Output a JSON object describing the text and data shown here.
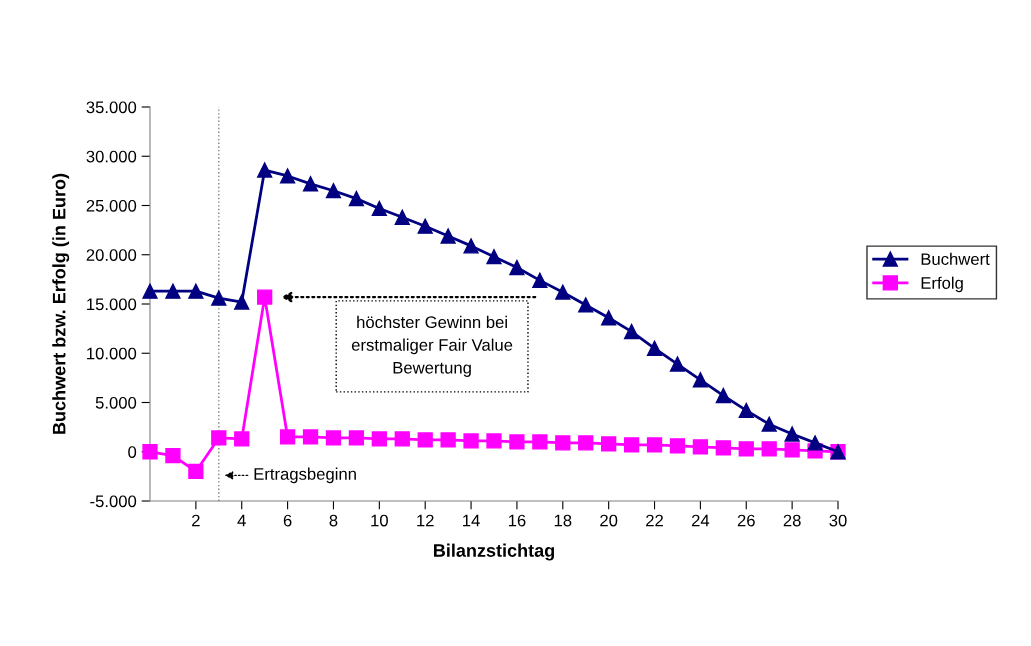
{
  "chart_data": {
    "type": "line",
    "xlabel": "Bilanzstichtag",
    "ylabel": "Buchwert bzw. Erfolg (in Euro)",
    "x": [
      0,
      1,
      2,
      3,
      4,
      5,
      6,
      7,
      8,
      9,
      10,
      11,
      12,
      13,
      14,
      15,
      16,
      17,
      18,
      19,
      20,
      21,
      22,
      23,
      24,
      25,
      26,
      27,
      28,
      29,
      30
    ],
    "series": [
      {
        "name": "Buchwert",
        "color": "#000080",
        "marker": "triangle",
        "values": [
          16300,
          16300,
          16300,
          15600,
          15200,
          28600,
          28000,
          27200,
          26500,
          25700,
          24700,
          23800,
          22900,
          21900,
          20900,
          19800,
          18700,
          17400,
          16200,
          14900,
          13600,
          12200,
          10500,
          8900,
          7300,
          5700,
          4200,
          2800,
          1800,
          900,
          0
        ]
      },
      {
        "name": "Erfolg",
        "color": "#ff00ff",
        "marker": "square",
        "values": [
          0,
          -400,
          -2000,
          1400,
          1300,
          15700,
          1500,
          1500,
          1400,
          1400,
          1300,
          1300,
          1200,
          1200,
          1100,
          1100,
          1000,
          1000,
          900,
          900,
          800,
          700,
          700,
          600,
          500,
          400,
          300,
          300,
          200,
          100,
          0
        ]
      }
    ],
    "xlim": [
      0,
      30
    ],
    "xticks": [
      2,
      4,
      6,
      8,
      10,
      12,
      14,
      16,
      18,
      20,
      22,
      24,
      26,
      28,
      30
    ],
    "ylim": [
      -5000,
      35000
    ],
    "yticks": [
      {
        "value": -5000,
        "label": "-5.000"
      },
      0,
      {
        "value": 5000,
        "label": "5.000"
      },
      {
        "value": 10000,
        "label": "10.000"
      },
      {
        "value": 15000,
        "label": "15.000"
      },
      {
        "value": 20000,
        "label": "20.000"
      },
      {
        "value": 25000,
        "label": "25.000"
      },
      {
        "value": 30000,
        "label": "30.000"
      },
      {
        "value": 35000,
        "label": "35.000"
      }
    ],
    "ref_lines": [
      {
        "axis": "x",
        "value": 3,
        "color": "#808080",
        "line_style": "dotted"
      }
    ],
    "annotations": [
      "höchster Gewinn bei\nerstmaliger Fair Value\nBewertung",
      {
        "text": "Ertragsbeginn",
        "x": 3,
        "y": -2400
      }
    ],
    "grid": false,
    "legend": "right",
    "line_style": "solid"
  }
}
